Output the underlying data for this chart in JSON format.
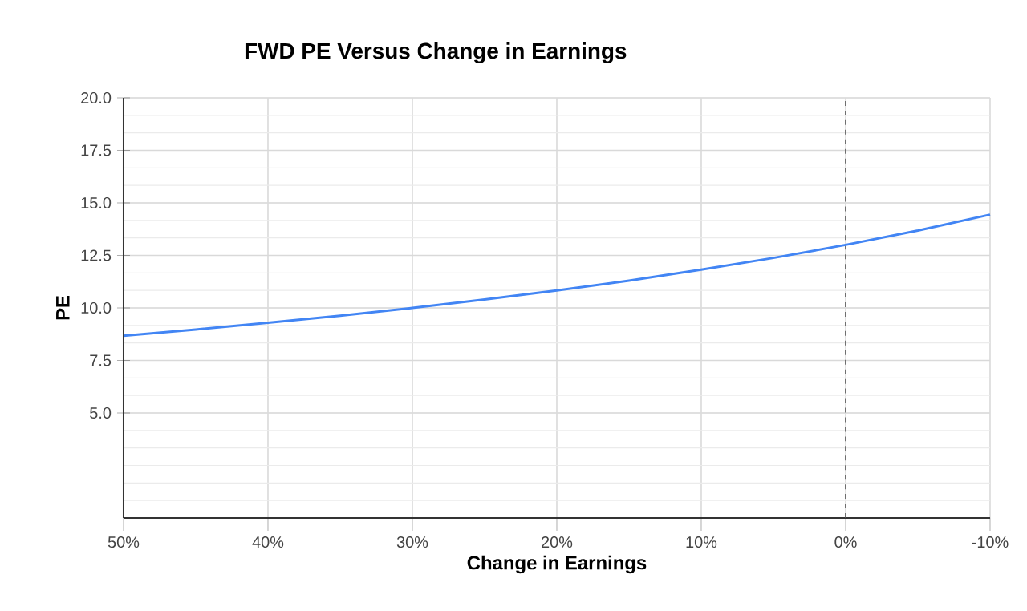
{
  "chart_data": {
    "type": "line",
    "title": "FWD PE Versus Change in Earnings",
    "xlabel": "Change in Earnings",
    "ylabel": "PE",
    "x": [
      50,
      45,
      40,
      35,
      30,
      25,
      20,
      15,
      10,
      5,
      0,
      -5,
      -10
    ],
    "series": [
      {
        "color": "#4285f4",
        "values": [
          8.67,
          8.97,
          9.29,
          9.63,
          10.0,
          10.4,
          10.83,
          11.3,
          11.82,
          12.38,
          13.0,
          13.68,
          14.44
        ]
      }
    ],
    "xlim": [
      50,
      -10
    ],
    "xticks": [
      {
        "value": 50,
        "label": "50%"
      },
      {
        "value": 40,
        "label": "40%"
      },
      {
        "value": 30,
        "label": "30%"
      },
      {
        "value": 20,
        "label": "20%"
      },
      {
        "value": 10,
        "label": "10%"
      },
      {
        "value": 0,
        "label": "0%"
      },
      {
        "value": -10,
        "label": "-10%"
      }
    ],
    "ylim": [
      0,
      20
    ],
    "yticks": [
      {
        "value": 5,
        "label": "5.0"
      },
      {
        "value": 7.5,
        "label": "7.5"
      },
      {
        "value": 10,
        "label": "10.0"
      },
      {
        "value": 12.5,
        "label": "12.5"
      },
      {
        "value": 15,
        "label": "15.0"
      },
      {
        "value": 17.5,
        "label": "17.5"
      },
      {
        "value": 20,
        "label": "20.0"
      }
    ],
    "ref_lines": [
      {
        "axis": "x",
        "value": 0,
        "color": "#555555",
        "line_style": "dashed"
      }
    ],
    "grid": true,
    "marker": "none",
    "line_style": "solid"
  }
}
